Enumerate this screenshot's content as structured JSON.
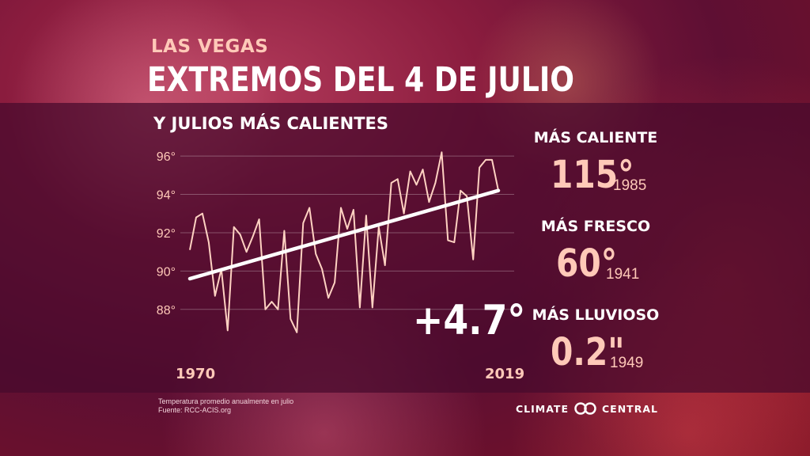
{
  "header": {
    "city": "LAS VEGAS",
    "title": "EXTREMOS DEL 4 DE JULIO",
    "subtitle": "Y JULIOS MÁS CALIENTES"
  },
  "stats": {
    "hottest": {
      "label": "MÁS CALIENTE",
      "value": "115°",
      "year": "1985"
    },
    "coolest": {
      "label": "MÁS FRESCO",
      "value": "60°",
      "year": "1941"
    },
    "wettest": {
      "label": "MÁS LLUVIOSO",
      "value": "0.2\"",
      "year": "1949"
    }
  },
  "change_label": "+4.7°",
  "footer": {
    "note": "Temperatura promedio anualmente en julio",
    "source": "Fuente: RCC-ACIS.org",
    "brand_left": "CLIMATE",
    "brand_right": "CENTRAL"
  },
  "colors": {
    "series_line": "#ffd2c2",
    "trend_line": "#ffffff",
    "accent_text": "#ffc9b8"
  },
  "chart_data": {
    "type": "line",
    "x_start_label": "1970",
    "x_end_label": "2019",
    "xlim": [
      1970,
      2019
    ],
    "ylim": [
      87,
      96.5
    ],
    "yticks": [
      88,
      90,
      92,
      94,
      96
    ],
    "ytick_labels": [
      "88°",
      "90°",
      "92°",
      "94°",
      "96°"
    ],
    "grid": true,
    "series": [
      {
        "x": [
          1970,
          1971,
          1972,
          1973,
          1974,
          1975,
          1976,
          1977,
          1978,
          1979,
          1980,
          1981,
          1982,
          1983,
          1984,
          1985,
          1986,
          1987,
          1988,
          1989,
          1990,
          1991,
          1992,
          1993,
          1994,
          1995,
          1996,
          1997,
          1998,
          1999,
          2000,
          2001,
          2002,
          2003,
          2004,
          2005,
          2006,
          2007,
          2008,
          2009,
          2010,
          2011,
          2012,
          2013,
          2014,
          2015,
          2016,
          2017,
          2018,
          2019
        ],
        "values": [
          91.1,
          92.8,
          93.0,
          91.5,
          88.7,
          90.1,
          86.9,
          92.3,
          91.9,
          91.0,
          91.8,
          92.7,
          88.0,
          88.4,
          88.0,
          92.1,
          87.5,
          86.8,
          92.5,
          93.3,
          90.9,
          90.1,
          88.6,
          89.4,
          93.3,
          92.2,
          93.2,
          88.1,
          92.9,
          88.1,
          92.3,
          90.3,
          94.6,
          94.8,
          93.0,
          95.2,
          94.5,
          95.3,
          93.6,
          94.6,
          96.2,
          91.6,
          91.5,
          94.2,
          93.9,
          90.6,
          95.4,
          95.8,
          95.8,
          94.2
        ]
      }
    ],
    "trend": {
      "x": [
        1970,
        2019
      ],
      "values": [
        89.6,
        94.2
      ]
    }
  }
}
